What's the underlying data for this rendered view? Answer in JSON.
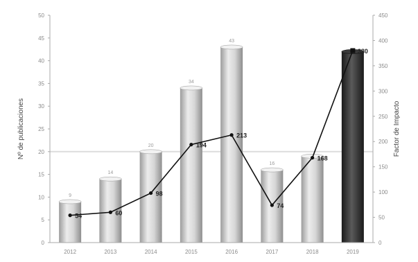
{
  "chart_data": {
    "type": "bar",
    "categories": [
      "2012",
      "2013",
      "2014",
      "2015",
      "2016",
      "2017",
      "2018",
      "2019"
    ],
    "series": [
      {
        "name": "Nº de publicaciones",
        "type": "bar",
        "axis": "left",
        "values": [
          9,
          14,
          20,
          34,
          43,
          16,
          19,
          42
        ],
        "labels": [
          "9",
          "14",
          "20",
          "34",
          "43",
          "16",
          "",
          ""
        ]
      },
      {
        "name": "Factor de Impacto",
        "type": "line",
        "axis": "right",
        "values": [
          54,
          60,
          98,
          194,
          213,
          74,
          168,
          380
        ],
        "labels": [
          "54",
          "60",
          "98",
          "194",
          "213",
          "74",
          "168",
          "380"
        ]
      }
    ],
    "ylabel": "Nº de publicaciones",
    "y2label": "Factor de Impacto",
    "ylim": [
      0,
      50
    ],
    "yticks": [
      "0",
      "5",
      "10",
      "15",
      "20",
      "25",
      "30",
      "35",
      "40",
      "45",
      "50"
    ],
    "y2lim": [
      0,
      450
    ],
    "y2ticks": [
      "0",
      "50",
      "100",
      "150",
      "200",
      "250",
      "300",
      "350",
      "400",
      "450"
    ],
    "grid": false,
    "reference_line": {
      "axis": "left",
      "value": 20
    },
    "colors": {
      "bar": "#c4c4c4",
      "bar_highlight": "#2a2a2a",
      "line": "#111111",
      "axis": "#aaaaaa",
      "reference": "#dcdcdc"
    }
  }
}
